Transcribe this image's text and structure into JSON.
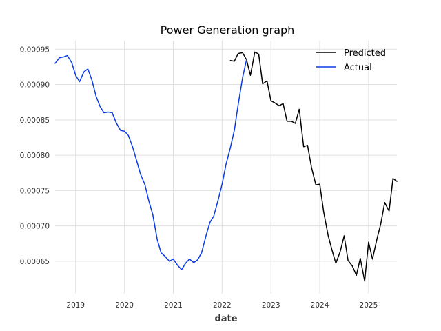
{
  "chart_data": {
    "type": "line",
    "title": "Power Generation graph",
    "xlabel": "date",
    "ylabel": "",
    "x_tick_labels": [
      "2019",
      "2020",
      "2021",
      "2022",
      "2023",
      "2024",
      "2025"
    ],
    "y_tick_labels": [
      "0.00065",
      "0.00070",
      "0.00075",
      "0.00080",
      "0.00085",
      "0.00090",
      "0.00095"
    ],
    "xlim": [
      2018.58,
      2025.58
    ],
    "ylim": [
      0.000604,
      0.000962
    ],
    "grid": true,
    "legend_position": "top-right",
    "series": [
      {
        "name": "Predicted",
        "color": "#000000",
        "x": [
          2022.17,
          2022.25,
          2022.33,
          2022.42,
          2022.5,
          2022.58,
          2022.67,
          2022.75,
          2022.83,
          2022.92,
          2023.0,
          2023.08,
          2023.17,
          2023.25,
          2023.33,
          2023.42,
          2023.5,
          2023.58,
          2023.67,
          2023.75,
          2023.83,
          2023.92,
          2024.0,
          2024.08,
          2024.17,
          2024.25,
          2024.33,
          2024.42,
          2024.5,
          2024.58,
          2024.67,
          2024.75,
          2024.83,
          2024.92,
          2025.0,
          2025.08,
          2025.17,
          2025.25,
          2025.33,
          2025.42,
          2025.5,
          2025.58
        ],
        "values": [
          0.000934,
          0.000933,
          0.000944,
          0.000945,
          0.000935,
          0.000913,
          0.000946,
          0.000943,
          0.000901,
          0.000905,
          0.000877,
          0.000874,
          0.00087,
          0.000873,
          0.000848,
          0.000848,
          0.000845,
          0.000865,
          0.000812,
          0.000814,
          0.000783,
          0.000758,
          0.000759,
          0.00072,
          0.000687,
          0.000666,
          0.000647,
          0.000664,
          0.000686,
          0.000651,
          0.000643,
          0.00063,
          0.000654,
          0.000622,
          0.000677,
          0.000653,
          0.000681,
          0.000703,
          0.000733,
          0.000721,
          0.000767,
          0.000763
        ]
      },
      {
        "name": "Actual",
        "color": "#0a3be8",
        "x": [
          2018.58,
          2018.67,
          2018.75,
          2018.83,
          2018.92,
          2019.0,
          2019.08,
          2019.17,
          2019.25,
          2019.33,
          2019.42,
          2019.5,
          2019.58,
          2019.67,
          2019.75,
          2019.83,
          2019.92,
          2020.0,
          2020.08,
          2020.17,
          2020.25,
          2020.33,
          2020.42,
          2020.5,
          2020.58,
          2020.67,
          2020.75,
          2020.83,
          2020.92,
          2021.0,
          2021.08,
          2021.17,
          2021.25,
          2021.33,
          2021.42,
          2021.5,
          2021.58,
          2021.67,
          2021.75,
          2021.83,
          2021.92,
          2022.0,
          2022.08,
          2022.17,
          2022.25,
          2022.33,
          2022.42,
          2022.5
        ],
        "values": [
          0.00093,
          0.000938,
          0.000939,
          0.000941,
          0.000931,
          0.000913,
          0.000904,
          0.000918,
          0.000922,
          0.000907,
          0.000883,
          0.000869,
          0.00086,
          0.000861,
          0.00086,
          0.000846,
          0.000835,
          0.000834,
          0.000828,
          0.000811,
          0.000792,
          0.000773,
          0.000758,
          0.000735,
          0.000716,
          0.000681,
          0.000662,
          0.000657,
          0.00065,
          0.000653,
          0.000645,
          0.000638,
          0.000647,
          0.000653,
          0.000648,
          0.000652,
          0.000662,
          0.000686,
          0.000705,
          0.000714,
          0.000737,
          0.000759,
          0.000787,
          0.000811,
          0.000835,
          0.000872,
          0.00091,
          0.000935
        ]
      }
    ]
  }
}
